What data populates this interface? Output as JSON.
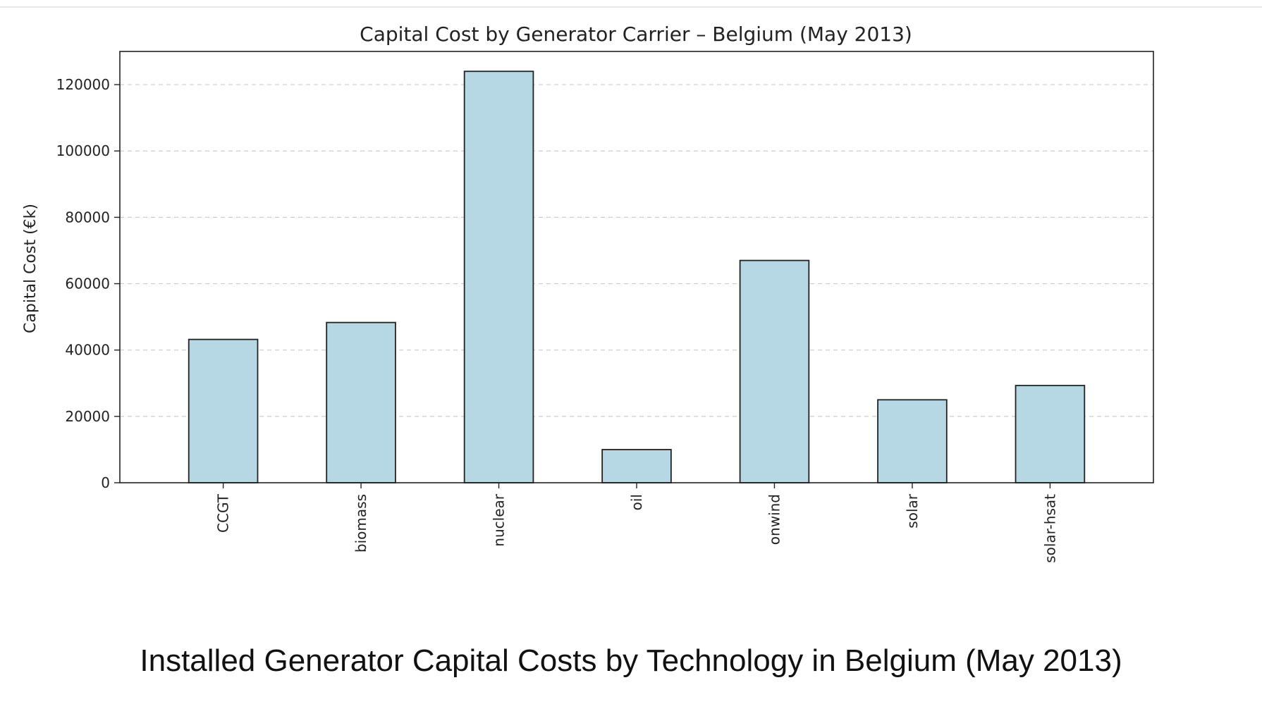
{
  "caption": "Installed Generator Capital Costs by Technology in Belgium (May 2013)",
  "colors": {
    "bar_fill": "#b5d8e4",
    "bar_edge": "#222222",
    "grid": "#cccccc",
    "text": "#222222"
  },
  "chart_data": {
    "type": "bar",
    "title": "Capital Cost by Generator Carrier – Belgium (May 2013)",
    "xlabel": "",
    "ylabel": "Capital Cost (€k)",
    "categories": [
      "CCGT",
      "biomass",
      "nuclear",
      "oil",
      "onwind",
      "solar",
      "solar-hsat"
    ],
    "values": [
      43200,
      48300,
      124000,
      10000,
      67000,
      25000,
      29300
    ],
    "yticks": [
      0,
      20000,
      40000,
      60000,
      80000,
      100000,
      120000
    ],
    "ylim": [
      0,
      130000
    ],
    "grid": "y-dashed",
    "legend": "none"
  }
}
